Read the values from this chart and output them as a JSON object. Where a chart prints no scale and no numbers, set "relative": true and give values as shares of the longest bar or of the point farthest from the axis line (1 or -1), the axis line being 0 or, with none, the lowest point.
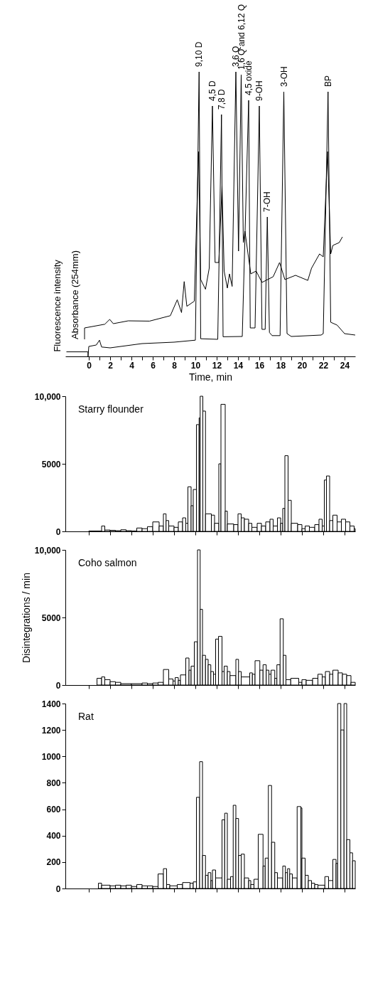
{
  "chart_data": [
    {
      "type": "line",
      "relative": true,
      "xlabel": "Time, min",
      "xlim": [
        -2.2,
        25
      ],
      "xticks": [
        0,
        {
          "value": 1,
          "label": null
        },
        2,
        {
          "value": 3,
          "label": null
        },
        4,
        {
          "value": 5,
          "label": null
        },
        6,
        {
          "value": 7,
          "label": null
        },
        8,
        {
          "value": 9,
          "label": null
        },
        10,
        {
          "value": 11,
          "label": null
        },
        12,
        {
          "value": 13,
          "label": null
        },
        14,
        {
          "value": 15,
          "label": null
        },
        16,
        {
          "value": 17,
          "label": null
        },
        18,
        {
          "value": 19,
          "label": null
        },
        20,
        {
          "value": 21,
          "label": null
        },
        22,
        {
          "value": 23,
          "label": null
        },
        24
      ],
      "grid": false,
      "series": [
        {
          "name": "Fluorescence intensity",
          "color": "#000000",
          "x": [
            -2.1,
            -0.08,
            -0.07,
            0,
            0.7,
            1.0,
            1.2,
            2,
            5,
            8,
            10.0,
            10.35,
            10.5,
            12.1,
            12.45,
            12.6,
            14.4,
            15.0,
            15.15,
            15.6,
            16.0,
            16.25,
            16.55,
            16.75,
            16.95,
            17.2,
            17.95,
            18.3,
            18.6,
            19.0,
            21.8,
            22.0,
            22.45,
            22.7,
            23.3,
            24.0,
            25.0
          ],
          "values": [
            0.016,
            0.016,
            0,
            0.035,
            0.04,
            0.057,
            0.033,
            0.03,
            0.045,
            0.05,
            0.057,
            1.0,
            0.062,
            0.06,
            0.85,
            0.069,
            0.07,
            0.9,
            0.1,
            0.1,
            0.88,
            0.095,
            0.095,
            0.49,
            0.084,
            0.073,
            0.073,
            0.93,
            0.08,
            0.07,
            0.075,
            0.08,
            0.93,
            0.12,
            0.11,
            0.08,
            0.075
          ]
        },
        {
          "name": "Absorbance (254mm)",
          "color": "#000000",
          "x": [
            -0.4,
            -0.4,
            1.5,
            1.96,
            2.3,
            3.7,
            5.7,
            7.65,
            8.3,
            8.7,
            8.95,
            9.2,
            9.9,
            10.3,
            10.5,
            10.95,
            11.3,
            11.6,
            11.85,
            12.2,
            12.5,
            12.7,
            13.0,
            13.2,
            13.45,
            13.8,
            14.05,
            14.3,
            14.5,
            14.65,
            15.2,
            15.7,
            16.25,
            17.3,
            17.9,
            18.4,
            19.4,
            20.55,
            20.9,
            21.65,
            22.0,
            22.4,
            22.7,
            22.9,
            23.5,
            23.8
          ],
          "values": [
            0.06,
            0.1,
            0.113,
            0.13,
            0.115,
            0.125,
            0.124,
            0.143,
            0.199,
            0.154,
            0.263,
            0.176,
            0.194,
            0.72,
            0.27,
            0.236,
            0.31,
            0.88,
            0.33,
            0.33,
            0.6,
            0.3,
            0.24,
            0.29,
            0.246,
            1.0,
            0.37,
            0.99,
            0.4,
            0.44,
            0.29,
            0.3,
            0.26,
            0.28,
            0.33,
            0.27,
            0.285,
            0.267,
            0.31,
            0.36,
            0.35,
            0.72,
            0.36,
            0.39,
            0.4,
            0.42
          ]
        }
      ],
      "annotations": [
        {
          "text": "9,10 D",
          "x": 10.35,
          "y": 1.0
        },
        {
          "text": "4,5 D",
          "x": 11.6,
          "y": 0.88
        },
        {
          "text": "7,8 D",
          "x": 12.45,
          "y": 0.85
        },
        {
          "text": "3,6 Q",
          "x": 13.8,
          "y": 1.0
        },
        {
          "text": "1,6 Q and 6,12 Q",
          "x": 14.3,
          "y": 0.99
        },
        {
          "text": "4,5 oxide",
          "x": 15.0,
          "y": 0.9
        },
        {
          "text": "9-OH",
          "x": 16.0,
          "y": 0.88
        },
        {
          "text": "7-OH",
          "x": 16.75,
          "y": 0.49
        },
        {
          "text": "3-OH",
          "x": 18.3,
          "y": 0.93
        },
        {
          "text": "BP",
          "x": 22.45,
          "y": 0.93
        }
      ]
    },
    {
      "type": "histogram",
      "title": "Starry flounder",
      "color": "#ffffff",
      "xlim": [
        -2.2,
        25
      ],
      "xticks": [
        0,
        2,
        4,
        6,
        8,
        10,
        12,
        14,
        16,
        18,
        20,
        22,
        24
      ],
      "ylim": [
        0,
        10000
      ],
      "yticks": [
        0,
        5000,
        {
          "value": 10000,
          "label": "10,000"
        }
      ],
      "tick_labels": "y",
      "grid": false,
      "bins": [
        0,
        1.2,
        1.5,
        2,
        2.5,
        3,
        3.5,
        4,
        4.5,
        5,
        5.5,
        6,
        6.6,
        7.0,
        7.25,
        7.5,
        8,
        8.4,
        8.8,
        9.1,
        9.3,
        9.6,
        9.8,
        10.1,
        10.35,
        10.45,
        10.7,
        10.95,
        11.5,
        11.8,
        12.2,
        12.4,
        12.8,
        13.0,
        13.6,
        14.0,
        14.3,
        14.6,
        15.0,
        15.3,
        15.8,
        16.2,
        16.6,
        17.0,
        17.3,
        17.7,
        18.0,
        18.2,
        18.4,
        18.7,
        19.0,
        19.6,
        20.0,
        20.3,
        20.7,
        21.2,
        21.6,
        21.9,
        22.1,
        22.3,
        22.6,
        22.9,
        23.3,
        23.7,
        24.1,
        24.5,
        24.9,
        25
      ],
      "values": [
        30,
        400,
        100,
        80,
        50,
        120,
        50,
        30,
        250,
        200,
        350,
        700,
        400,
        1300,
        800,
        400,
        300,
        700,
        1000,
        600,
        3300,
        1900,
        3100,
        7900,
        8400,
        10000,
        8900,
        1300,
        1200,
        600,
        5000,
        9400,
        1500,
        550,
        500,
        1300,
        1000,
        900,
        600,
        300,
        600,
        400,
        700,
        900,
        400,
        1000,
        600,
        1700,
        5600,
        2300,
        600,
        500,
        200,
        400,
        300,
        500,
        900,
        400,
        3800,
        4100,
        800,
        1200,
        700,
        900,
        700,
        400,
        200
      ]
    },
    {
      "type": "histogram",
      "title": "Coho salmon",
      "ylabel": "Disintegrations / min",
      "color": "#ffffff",
      "xlim": [
        -2.2,
        25
      ],
      "xticks": [
        0,
        2,
        4,
        6,
        8,
        10,
        12,
        14,
        16,
        18,
        20,
        22,
        24
      ],
      "ylim": [
        0,
        10000
      ],
      "yticks": [
        0,
        5000,
        {
          "value": 10000,
          "label": "10,000"
        }
      ],
      "tick_labels": "y",
      "grid": false,
      "bins": [
        0.77,
        1.2,
        1.5,
        2,
        2.5,
        3,
        4,
        5,
        5.5,
        6,
        6.5,
        7.0,
        7.5,
        7.9,
        8.1,
        8.4,
        8.6,
        9.1,
        9.4,
        9.6,
        9.9,
        10.2,
        10.45,
        10.67,
        10.95,
        11.2,
        11.45,
        11.7,
        11.9,
        12.17,
        12.5,
        12.7,
        13.0,
        13.25,
        13.8,
        14.05,
        14.3,
        15.1,
        15.35,
        15.6,
        16.05,
        16.35,
        16.65,
        16.9,
        17.1,
        17.45,
        17.65,
        17.95,
        18.25,
        18.5,
        18.95,
        19.7,
        20.0,
        20.4,
        21.0,
        21.5,
        21.9,
        22.2,
        22.6,
        22.9,
        23.4,
        23.8,
        24.2,
        24.6,
        25
      ],
      "values": [
        500,
        600,
        400,
        250,
        200,
        100,
        100,
        150,
        100,
        150,
        200,
        1150,
        450,
        300,
        550,
        350,
        750,
        2000,
        1100,
        1400,
        3200,
        10000,
        5600,
        2200,
        1900,
        1500,
        1000,
        800,
        3400,
        3600,
        1000,
        1400,
        1000,
        700,
        1900,
        1000,
        600,
        900,
        800,
        1800,
        1100,
        1500,
        1100,
        800,
        1100,
        500,
        1500,
        4900,
        2200,
        400,
        500,
        200,
        400,
        350,
        500,
        800,
        600,
        1000,
        800,
        1100,
        900,
        800,
        700,
        200
      ]
    },
    {
      "type": "histogram",
      "title": "Rat",
      "color": "#ffffff",
      "xlim": [
        -2.2,
        25
      ],
      "xticks": [
        0,
        2,
        4,
        6,
        8,
        10,
        12,
        14,
        16,
        18,
        20,
        22,
        24
      ],
      "ylim": [
        0,
        1400
      ],
      "yticks": [
        0,
        200,
        400,
        600,
        800,
        1000,
        1200,
        1400
      ],
      "tick_labels": "y",
      "grid": false,
      "bins": [
        0.9,
        1.2,
        2,
        2.5,
        3,
        3.5,
        4,
        4.5,
        5,
        5.5,
        6,
        6.5,
        7.0,
        7.3,
        7.6,
        8.3,
        8.8,
        9.5,
        9.8,
        10.1,
        10.4,
        10.67,
        10.95,
        11.2,
        11.45,
        11.6,
        11.9,
        12.5,
        12.75,
        13.0,
        13.3,
        13.55,
        13.8,
        14.05,
        14.3,
        14.6,
        15.0,
        15.2,
        15.5,
        15.9,
        16.35,
        16.55,
        16.85,
        17.15,
        17.45,
        17.7,
        18.2,
        18.45,
        18.65,
        18.85,
        19.1,
        19.55,
        19.9,
        20.0,
        20.3,
        20.6,
        20.9,
        21.2,
        21.5,
        22.15,
        22.5,
        22.9,
        23.2,
        23.35,
        23.65,
        23.95,
        24.2,
        24.5,
        24.75,
        25
      ],
      "values": [
        40,
        25,
        20,
        25,
        20,
        25,
        15,
        30,
        20,
        20,
        15,
        110,
        150,
        30,
        20,
        30,
        45,
        40,
        50,
        690,
        960,
        250,
        100,
        120,
        60,
        140,
        80,
        520,
        570,
        70,
        90,
        630,
        530,
        250,
        260,
        80,
        60,
        30,
        70,
        410,
        170,
        230,
        780,
        350,
        120,
        80,
        170,
        120,
        150,
        110,
        80,
        620,
        610,
        230,
        100,
        60,
        40,
        30,
        25,
        90,
        60,
        220,
        190,
        1400,
        1200,
        1400,
        370,
        270,
        210
      ]
    }
  ]
}
